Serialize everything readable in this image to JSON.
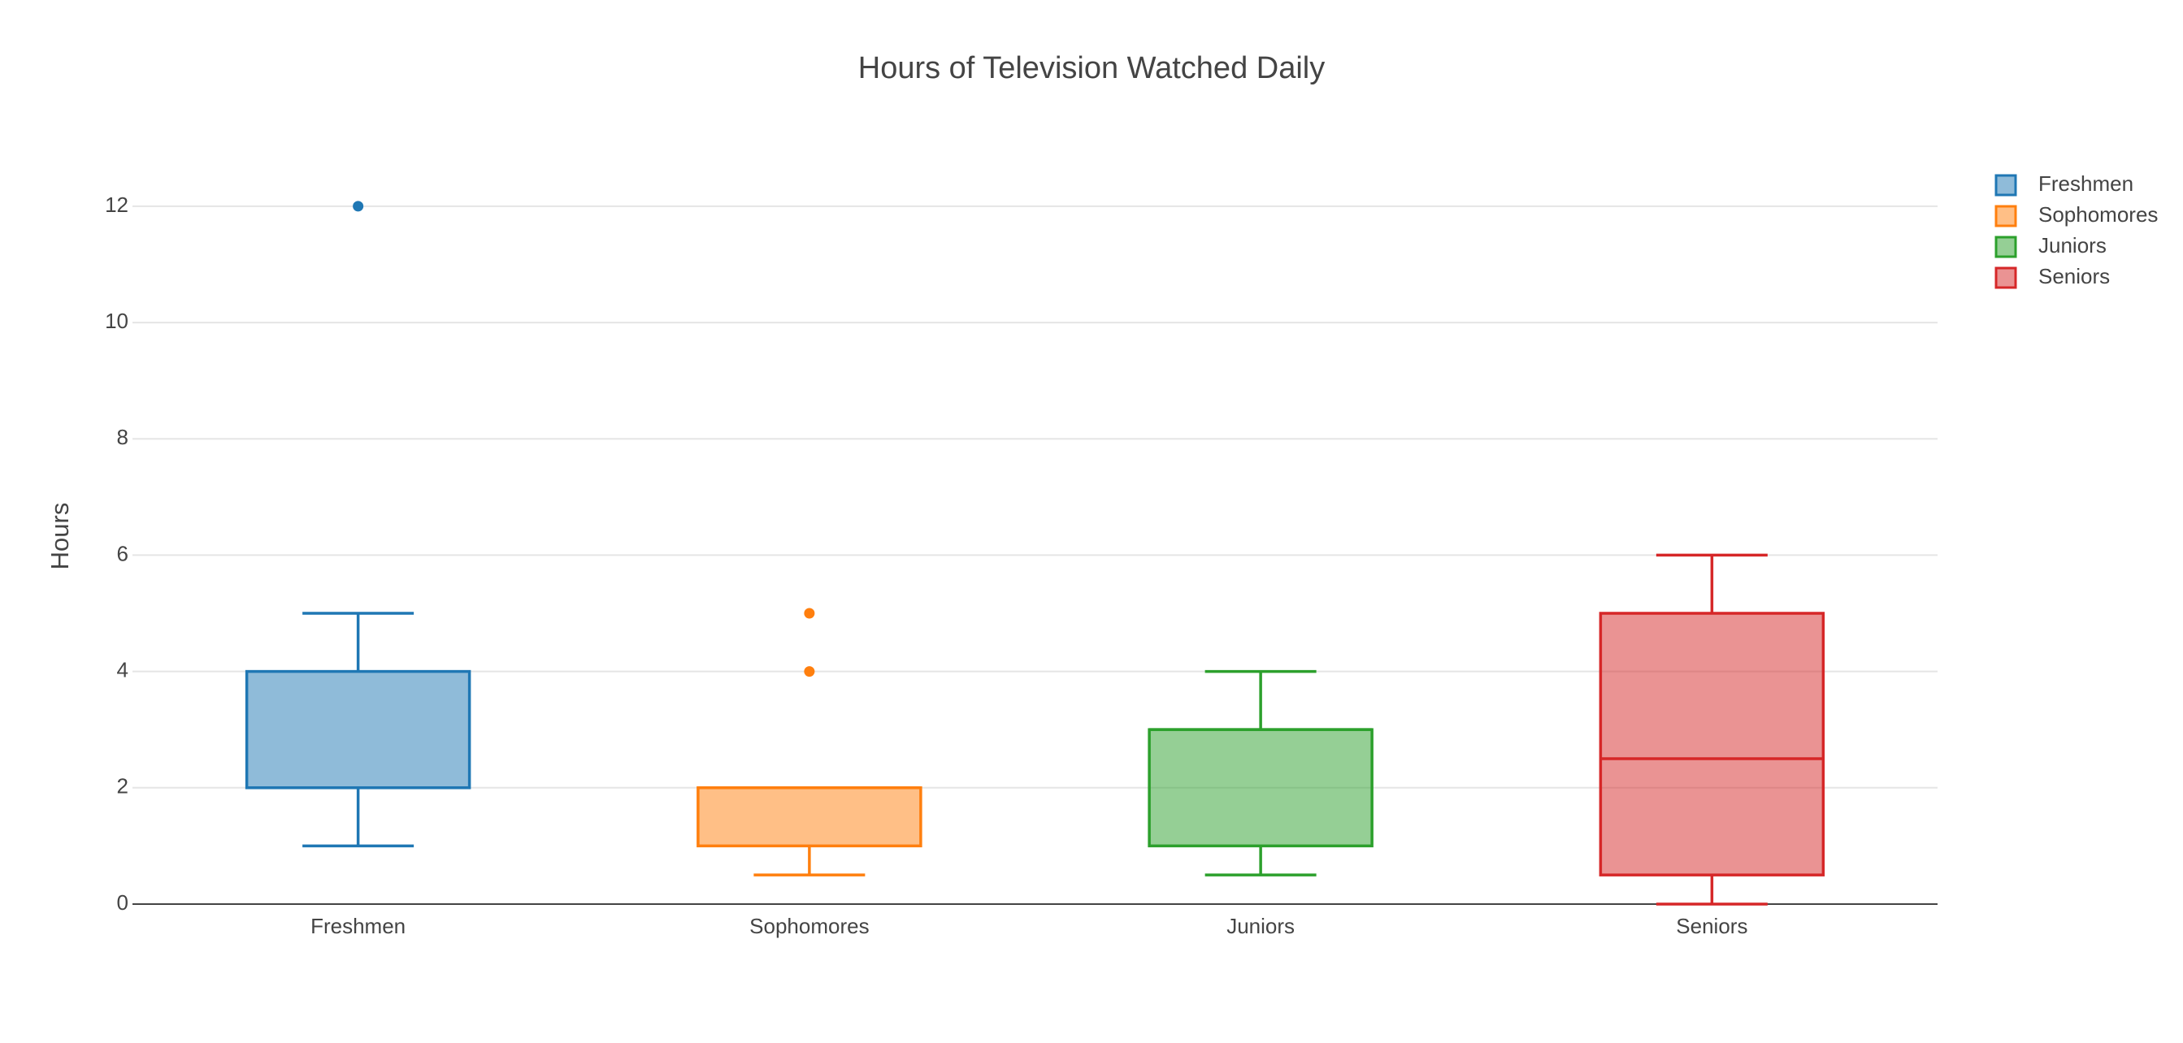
{
  "chart_data": {
    "type": "box",
    "title": "Hours of Television Watched Daily",
    "y_label": "Hours",
    "categories": [
      "Freshmen",
      "Sophomores",
      "Juniors",
      "Seniors"
    ],
    "series": [
      {
        "name": "Freshmen",
        "color": "#1f77b4",
        "min": 1,
        "q1": 2,
        "median": 2,
        "q3": 4,
        "max": 5,
        "outliers": [
          12
        ]
      },
      {
        "name": "Sophomores",
        "color": "#ff7f0e",
        "min": 0.5,
        "q1": 1,
        "median": 2,
        "q3": 2,
        "max": 2,
        "outliers": [
          4,
          5
        ]
      },
      {
        "name": "Juniors",
        "color": "#2ca02c",
        "min": 0.5,
        "q1": 1,
        "median": 3,
        "q3": 3,
        "max": 4,
        "outliers": []
      },
      {
        "name": "Seniors",
        "color": "#d62728",
        "min": 0,
        "q1": 0.5,
        "median": 2.5,
        "q3": 5,
        "max": 6,
        "outliers": []
      }
    ],
    "ylim": [
      -0.35,
      13.2
    ],
    "yticks": [
      0,
      2,
      4,
      6,
      8,
      10,
      12
    ],
    "grid": true,
    "legend": "top-right"
  }
}
